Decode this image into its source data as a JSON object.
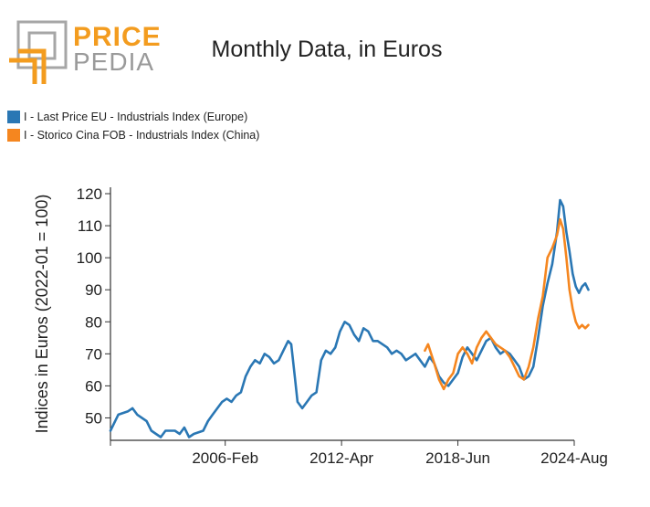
{
  "logo": {
    "word1": "PRICE",
    "word2": "PEDIA"
  },
  "chart_data": {
    "type": "line",
    "title": "Monthly Data, in Euros",
    "ylabel": "Indices in Euros (2022-01 = 100)",
    "xlabel": "",
    "ylim": [
      43,
      122
    ],
    "yticks": [
      50,
      60,
      70,
      80,
      90,
      100,
      110,
      120
    ],
    "x_range": [
      "2000-01",
      "2024-08"
    ],
    "xticks": [
      "2006-Feb",
      "2012-Apr",
      "2018-Jun",
      "2024-Aug"
    ],
    "legend_position": "top-left",
    "series": [
      {
        "name": "I - Last Price EU - Industrials Index (Europe)",
        "color": "#2a77b4",
        "points": [
          [
            "2000-01",
            46
          ],
          [
            "2000-06",
            51
          ],
          [
            "2000-12",
            52
          ],
          [
            "2001-03",
            53
          ],
          [
            "2001-06",
            51
          ],
          [
            "2001-12",
            49
          ],
          [
            "2002-03",
            46
          ],
          [
            "2002-06",
            45
          ],
          [
            "2002-09",
            44
          ],
          [
            "2002-12",
            46
          ],
          [
            "2003-06",
            46
          ],
          [
            "2003-09",
            45
          ],
          [
            "2003-12",
            47
          ],
          [
            "2004-03",
            44
          ],
          [
            "2004-06",
            45
          ],
          [
            "2004-12",
            46
          ],
          [
            "2005-03",
            49
          ],
          [
            "2005-06",
            51
          ],
          [
            "2005-09",
            53
          ],
          [
            "2005-12",
            55
          ],
          [
            "2006-03",
            56
          ],
          [
            "2006-06",
            55
          ],
          [
            "2006-09",
            57
          ],
          [
            "2006-12",
            58
          ],
          [
            "2007-03",
            63
          ],
          [
            "2007-06",
            66
          ],
          [
            "2007-09",
            68
          ],
          [
            "2007-12",
            67
          ],
          [
            "2008-03",
            70
          ],
          [
            "2008-06",
            69
          ],
          [
            "2008-09",
            67
          ],
          [
            "2008-12",
            68
          ],
          [
            "2009-03",
            71
          ],
          [
            "2009-06",
            74
          ],
          [
            "2009-08",
            73
          ],
          [
            "2009-10",
            64
          ],
          [
            "2009-12",
            55
          ],
          [
            "2010-03",
            53
          ],
          [
            "2010-06",
            55
          ],
          [
            "2010-09",
            57
          ],
          [
            "2010-12",
            58
          ],
          [
            "2011-03",
            68
          ],
          [
            "2011-06",
            71
          ],
          [
            "2011-09",
            70
          ],
          [
            "2011-12",
            72
          ],
          [
            "2012-03",
            77
          ],
          [
            "2012-06",
            80
          ],
          [
            "2012-09",
            79
          ],
          [
            "2012-12",
            76
          ],
          [
            "2013-03",
            74
          ],
          [
            "2013-06",
            78
          ],
          [
            "2013-09",
            77
          ],
          [
            "2013-12",
            74
          ],
          [
            "2014-03",
            74
          ],
          [
            "2014-06",
            73
          ],
          [
            "2014-09",
            72
          ],
          [
            "2014-12",
            70
          ],
          [
            "2015-03",
            71
          ],
          [
            "2015-06",
            70
          ],
          [
            "2015-09",
            68
          ],
          [
            "2015-12",
            69
          ],
          [
            "2016-03",
            70
          ],
          [
            "2016-06",
            68
          ],
          [
            "2016-09",
            66
          ],
          [
            "2016-12",
            69
          ],
          [
            "2017-03",
            67
          ],
          [
            "2017-06",
            63
          ],
          [
            "2017-09",
            61
          ],
          [
            "2017-12",
            60
          ],
          [
            "2018-03",
            62
          ],
          [
            "2018-06",
            64
          ],
          [
            "2018-09",
            69
          ],
          [
            "2018-12",
            72
          ],
          [
            "2019-03",
            70
          ],
          [
            "2019-06",
            68
          ],
          [
            "2019-09",
            71
          ],
          [
            "2019-12",
            74
          ],
          [
            "2020-03",
            75
          ],
          [
            "2020-06",
            72
          ],
          [
            "2020-09",
            70
          ],
          [
            "2020-12",
            71
          ],
          [
            "2021-03",
            70
          ],
          [
            "2021-06",
            68
          ],
          [
            "2021-09",
            66
          ],
          [
            "2021-12",
            62
          ],
          [
            "2022-03",
            63
          ],
          [
            "2022-06",
            66
          ],
          [
            "2022-09",
            75
          ],
          [
            "2022-12",
            85
          ],
          [
            "2023-03",
            92
          ],
          [
            "2023-06",
            98
          ],
          [
            "2023-09",
            108
          ],
          [
            "2023-11",
            118
          ],
          [
            "2024-01",
            116
          ],
          [
            "2024-03",
            108
          ],
          [
            "2024-05",
            102
          ],
          [
            "2024-07",
            95
          ],
          [
            "2024-09",
            91
          ],
          [
            "2024-11",
            89
          ],
          [
            "2025-01",
            91
          ],
          [
            "2025-03",
            92
          ],
          [
            "2025-05",
            90
          ]
        ]
      },
      {
        "name": "I - Storico Cina FOB - Industrials Index (China)",
        "color": "#f5861f",
        "points": [
          [
            "2016-09",
            71
          ],
          [
            "2016-11",
            73
          ],
          [
            "2017-01",
            70
          ],
          [
            "2017-03",
            67
          ],
          [
            "2017-06",
            62
          ],
          [
            "2017-09",
            59
          ],
          [
            "2017-12",
            62
          ],
          [
            "2018-03",
            64
          ],
          [
            "2018-06",
            70
          ],
          [
            "2018-09",
            72
          ],
          [
            "2018-12",
            70
          ],
          [
            "2019-03",
            67
          ],
          [
            "2019-06",
            72
          ],
          [
            "2019-09",
            75
          ],
          [
            "2019-12",
            77
          ],
          [
            "2020-03",
            75
          ],
          [
            "2020-06",
            73
          ],
          [
            "2020-09",
            72
          ],
          [
            "2020-12",
            71
          ],
          [
            "2021-03",
            69
          ],
          [
            "2021-06",
            66
          ],
          [
            "2021-09",
            63
          ],
          [
            "2021-12",
            62
          ],
          [
            "2022-03",
            66
          ],
          [
            "2022-06",
            72
          ],
          [
            "2022-09",
            81
          ],
          [
            "2022-12",
            88
          ],
          [
            "2023-03",
            100
          ],
          [
            "2023-06",
            103
          ],
          [
            "2023-09",
            107
          ],
          [
            "2023-11",
            112
          ],
          [
            "2024-01",
            109
          ],
          [
            "2024-03",
            100
          ],
          [
            "2024-05",
            90
          ],
          [
            "2024-07",
            84
          ],
          [
            "2024-09",
            80
          ],
          [
            "2024-11",
            78
          ],
          [
            "2025-01",
            79
          ],
          [
            "2025-03",
            78
          ],
          [
            "2025-05",
            79
          ]
        ]
      }
    ]
  }
}
